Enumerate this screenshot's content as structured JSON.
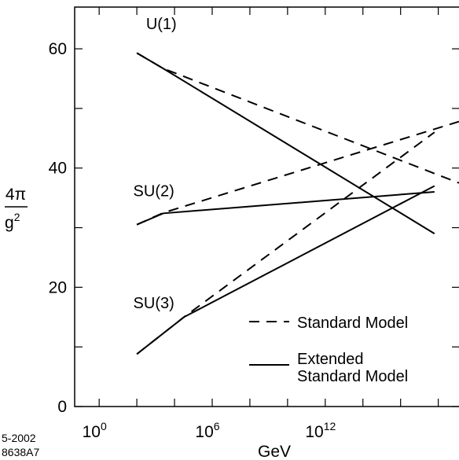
{
  "chart_data": {
    "type": "line",
    "xlabel": "GeV",
    "ylabel_numerator": "4π",
    "ylabel_denominator": "g",
    "ylabel_denominator_exponent": "2",
    "x_scale": "log10",
    "xlim_log10": [
      -1.3,
      19.1
    ],
    "ylim": [
      0,
      67
    ],
    "x_ticks": [
      {
        "base": "10",
        "exp": "0",
        "log10": 0
      },
      {
        "base": "10",
        "exp": "6",
        "log10": 6
      },
      {
        "base": "10",
        "exp": "12",
        "log10": 12
      }
    ],
    "y_ticks": [
      0,
      20,
      40,
      60
    ],
    "series": [
      {
        "name": "Standard Model",
        "group": "U(1)",
        "dash": true,
        "points": [
          [
            2.0,
            59.3
          ],
          [
            3.4,
            56.7
          ],
          [
            19.1,
            37.5
          ]
        ]
      },
      {
        "name": "Standard Model",
        "group": "SU(2)",
        "dash": true,
        "points": [
          [
            2.0,
            30.5
          ],
          [
            3.4,
            32.5
          ],
          [
            19.1,
            47.8
          ]
        ]
      },
      {
        "name": "Standard Model",
        "group": "SU(3)",
        "dash": true,
        "points": [
          [
            2.0,
            8.8
          ],
          [
            4.5,
            15.0
          ],
          [
            17.8,
            46.0
          ]
        ]
      },
      {
        "name": "Extended Standard Model",
        "group": "U(1)",
        "dash": false,
        "points": [
          [
            2.0,
            59.3
          ],
          [
            3.4,
            56.7
          ],
          [
            17.8,
            29.0
          ]
        ]
      },
      {
        "name": "Extended Standard Model",
        "group": "SU(2)",
        "dash": false,
        "points": [
          [
            2.0,
            30.5
          ],
          [
            3.4,
            32.4
          ],
          [
            17.8,
            36.0
          ]
        ]
      },
      {
        "name": "Extended Standard Model",
        "group": "SU(3)",
        "dash": false,
        "points": [
          [
            2.0,
            8.8
          ],
          [
            4.5,
            15.0
          ],
          [
            17.8,
            37.0
          ]
        ]
      }
    ],
    "annotations": [
      {
        "text": "U(1)",
        "x": 3.3,
        "y": 63.3
      },
      {
        "text": "SU(2)",
        "x": 2.9,
        "y": 35.3
      },
      {
        "text": "SU(3)",
        "x": 2.9,
        "y": 16.5
      }
    ],
    "legend": {
      "placement": "bottom-right",
      "entries": [
        {
          "label_lines": [
            "Standard Model"
          ],
          "dash": true
        },
        {
          "label_lines": [
            "Extended",
            "Standard Model"
          ],
          "dash": false
        }
      ]
    },
    "footnote_lines": [
      "5-2002",
      "8638A7"
    ]
  }
}
